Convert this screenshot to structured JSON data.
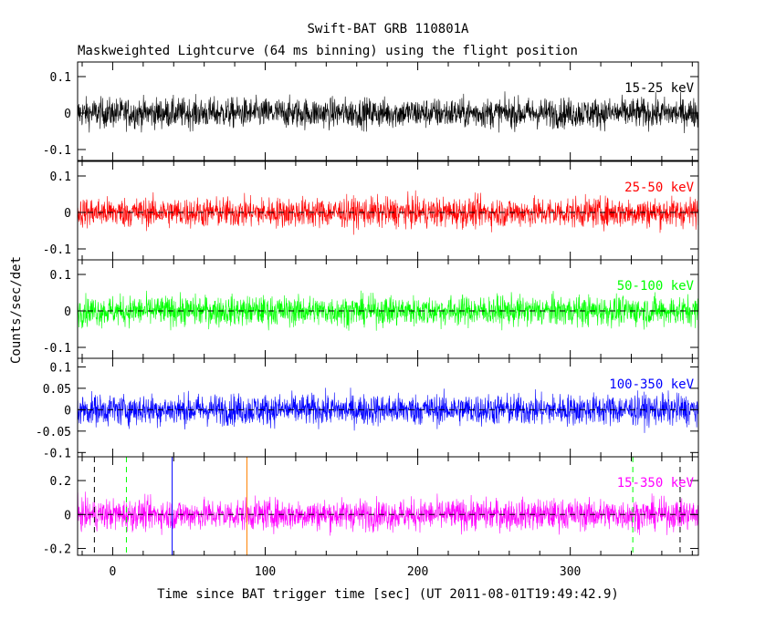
{
  "chart_data": {
    "type": "line",
    "title": "Swift-BAT GRB 110801A",
    "subtitle": "Maskweighted Lightcurve (64 ms binning) using the flight position",
    "xlabel": "Time since BAT trigger time [sec] (UT 2011-08-01T19:49:42.9)",
    "ylabel": "Counts/sec/det",
    "xlim": [
      -23,
      384
    ],
    "x_ticks": [
      "0",
      "100",
      "200",
      "300"
    ],
    "x_tick_values": [
      0,
      100,
      200,
      300
    ],
    "panels": [
      {
        "name": "15-25 keV",
        "color": "#000000",
        "ylim": [
          -0.13,
          0.14
        ],
        "y_tick_values": [
          -0.1,
          0,
          0.1
        ],
        "y_ticks": [
          "-0.1",
          "0",
          "0.1"
        ],
        "zero_dashed": false,
        "mean": 0.0,
        "noise_amplitude": 0.045,
        "vlines": []
      },
      {
        "name": "25-50 keV",
        "color": "#ff0000",
        "ylim": [
          -0.13,
          0.14
        ],
        "y_tick_values": [
          -0.1,
          0,
          0.1
        ],
        "y_ticks": [
          "-0.1",
          "0",
          "0.1"
        ],
        "zero_dashed": true,
        "mean": 0.0,
        "noise_amplitude": 0.045,
        "vlines": []
      },
      {
        "name": "50-100 keV",
        "color": "#00ff00",
        "ylim": [
          -0.13,
          0.14
        ],
        "y_tick_values": [
          -0.1,
          0,
          0.1
        ],
        "y_ticks": [
          "-0.1",
          "0",
          "0.1"
        ],
        "zero_dashed": true,
        "mean": 0.0,
        "noise_amplitude": 0.045,
        "vlines": []
      },
      {
        "name": "100-350 keV",
        "color": "#0000ff",
        "ylim": [
          -0.11,
          0.12
        ],
        "y_tick_values": [
          -0.1,
          -0.05,
          0,
          0.05,
          0.1
        ],
        "y_ticks": [
          "-0.1",
          "-0.05",
          "0",
          "0.05",
          "0.1"
        ],
        "zero_dashed": true,
        "mean": 0.0,
        "noise_amplitude": 0.04,
        "vlines": []
      },
      {
        "name": "15-350 keV",
        "color": "#ff00ff",
        "ylim": [
          -0.24,
          0.34
        ],
        "y_tick_values": [
          -0.2,
          0,
          0.2
        ],
        "y_ticks": [
          "-0.2",
          "0",
          "0.2"
        ],
        "zero_dashed": true,
        "mean": 0.0,
        "noise_amplitude": 0.1,
        "vlines": [
          {
            "x": -12,
            "color": "#000000",
            "style": "dashed"
          },
          {
            "x": 9,
            "color": "#00ff00",
            "style": "dashed"
          },
          {
            "x": 39,
            "color": "#0000ff",
            "style": "solid"
          },
          {
            "x": 88,
            "color": "#ff8000",
            "style": "solid"
          },
          {
            "x": 341,
            "color": "#00ff00",
            "style": "dashed"
          },
          {
            "x": 372,
            "color": "#000000",
            "style": "dashed"
          }
        ]
      }
    ]
  }
}
